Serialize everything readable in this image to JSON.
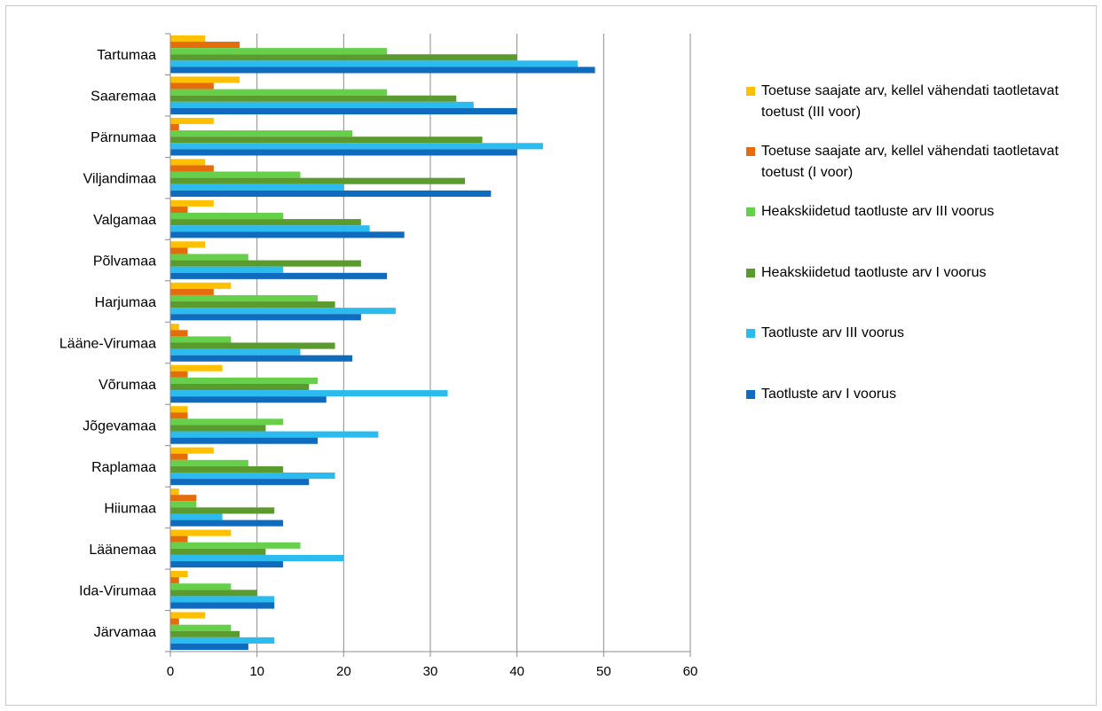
{
  "chart_data": {
    "type": "bar",
    "orientation": "horizontal",
    "categories": [
      "Tartumaa",
      "Saaremaa",
      "Pärnumaa",
      "Viljandimaa",
      "Valgamaa",
      "Põlvamaa",
      "Harjumaa",
      "Lääne-Virumaa",
      "Võrumaa",
      "Jõgevamaa",
      "Raplamaa",
      "Hiiumaa",
      "Läänemaa",
      "Ida-Virumaa",
      "Järvamaa"
    ],
    "series": [
      {
        "name": "Toetuse saajate arv, kellel vähendati taotletavat toetust (III voor)",
        "color": "#FFC000",
        "values": [
          4,
          8,
          5,
          4,
          5,
          4,
          7,
          1,
          6,
          2,
          5,
          1,
          7,
          2,
          4
        ]
      },
      {
        "name": "Toetuse saajate arv, kellel vähendati taotletavat toetust (I voor)",
        "color": "#E46C0A",
        "values": [
          8,
          5,
          1,
          5,
          2,
          2,
          5,
          2,
          2,
          2,
          2,
          3,
          2,
          1,
          1
        ]
      },
      {
        "name": "Heakskiidetud taotluste arv III voorus",
        "color": "#66D04A",
        "values": [
          25,
          25,
          21,
          15,
          13,
          9,
          17,
          7,
          17,
          13,
          9,
          3,
          15,
          7,
          7
        ]
      },
      {
        "name": "Heakskiidetud taotluste arv I voorus",
        "color": "#5A9A2E",
        "values": [
          40,
          33,
          36,
          34,
          22,
          22,
          19,
          19,
          16,
          11,
          13,
          12,
          11,
          10,
          8
        ]
      },
      {
        "name": "Taotluste arv III voorus",
        "color": "#2BBBEF",
        "values": [
          47,
          35,
          43,
          20,
          23,
          13,
          26,
          15,
          32,
          24,
          19,
          6,
          20,
          12,
          12
        ]
      },
      {
        "name": "Taotluste arv I voorus",
        "color": "#0F6BBD",
        "values": [
          49,
          40,
          40,
          37,
          27,
          25,
          22,
          21,
          18,
          17,
          16,
          13,
          13,
          12,
          9
        ]
      }
    ],
    "xlim": [
      0,
      60
    ],
    "xticks": [
      0,
      10,
      20,
      30,
      40,
      50,
      60
    ],
    "grid": "vertical",
    "legend": "right",
    "title": "",
    "xlabel": "",
    "ylabel": ""
  }
}
